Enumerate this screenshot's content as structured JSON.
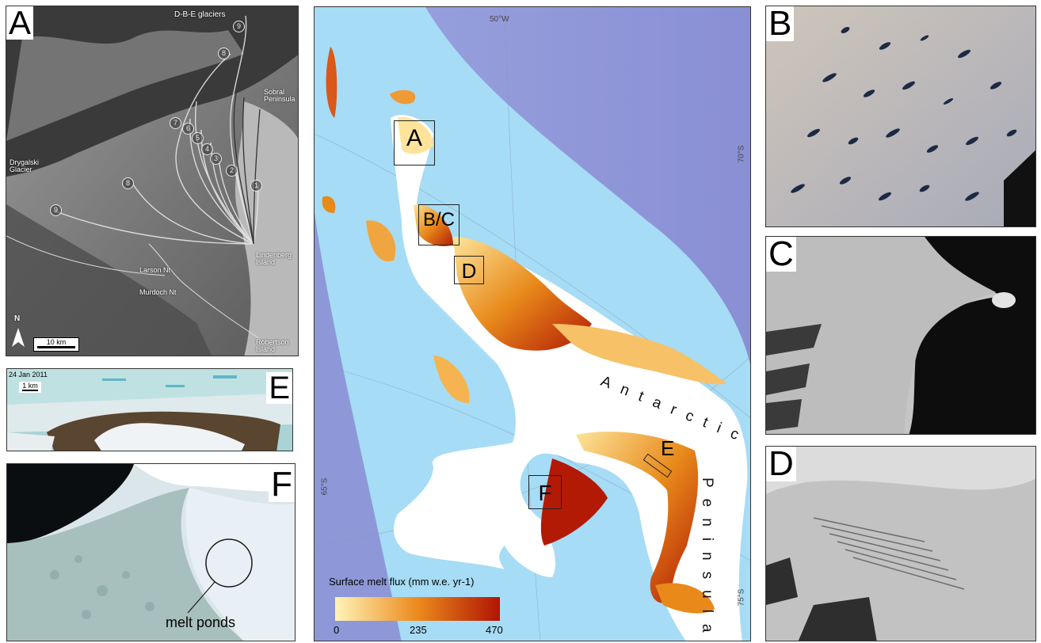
{
  "panel_a": {
    "letter": "A",
    "labels": {
      "dbe": "D-B-E glaciers",
      "sobral": "Sobral Peninsula",
      "drygalski": "Drygalski Glacier",
      "lindenberg": "Lindenberg Island",
      "larson": "Larson Nt",
      "murdoch": "Murdoch Nt",
      "robertson": "Robertson Island"
    },
    "markers": [
      "9",
      "8",
      "7",
      "6",
      "5",
      "4",
      "3",
      "2",
      "1",
      "8",
      "9"
    ],
    "north": "N",
    "scale": "10 km"
  },
  "panel_e": {
    "letter": "E",
    "date": "24 Jan 2011",
    "scale": "1 km"
  },
  "panel_f": {
    "letter": "F",
    "annotation": "melt ponds"
  },
  "panel_b": {
    "letter": "B"
  },
  "panel_c": {
    "letter": "C"
  },
  "panel_d": {
    "letter": "D"
  },
  "map": {
    "graticule": {
      "lon_top": "50°W",
      "lat_right_top": "70°S",
      "lat_left": "65°S",
      "lat_right_bottom": "75°S"
    },
    "boxes": {
      "a": "A",
      "bc": "B/C",
      "d": "D",
      "e": "E",
      "f": "F"
    },
    "peninsula_word1": "Antarctic",
    "peninsula_word2": "Peninsula",
    "legend": {
      "title": "Surface melt flux (mm w.e. yr-1)",
      "min": "0",
      "mid": "235",
      "max": "470"
    },
    "colors": {
      "ocean_deep": "#8a8fd4",
      "ocean_shelf": "#a6dcf5",
      "land": "#ffffff",
      "melt_low": "#fde49a",
      "melt_mid": "#e8891a",
      "melt_high": "#b21a05"
    }
  }
}
